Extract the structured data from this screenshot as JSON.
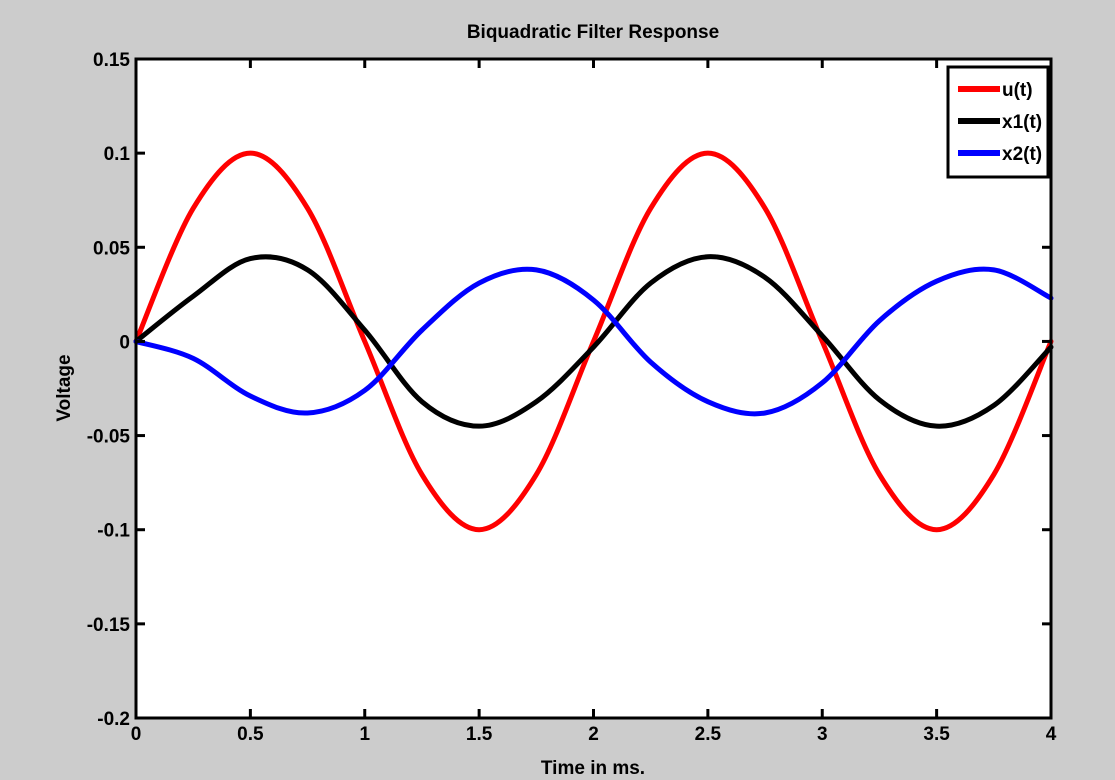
{
  "chart_data": {
    "type": "line",
    "title": "Biquadratic Filter Response",
    "xlabel": "Time in ms.",
    "ylabel": "Voltage",
    "xlim": [
      0,
      4
    ],
    "ylim": [
      -0.2,
      0.15
    ],
    "xticks": [
      0,
      0.5,
      1,
      1.5,
      2,
      2.5,
      3,
      3.5,
      4
    ],
    "xtick_labels": [
      "0",
      "0.5",
      "1",
      "1.5",
      "2",
      "2.5",
      "3",
      "3.5",
      "4"
    ],
    "yticks": [
      -0.2,
      -0.15,
      -0.1,
      -0.05,
      0,
      0.05,
      0.1,
      0.15
    ],
    "ytick_labels": [
      "-0.2",
      "-0.15",
      "-0.1",
      "-0.05",
      "0",
      "0.05",
      "0.1",
      "0.15"
    ],
    "grid": false,
    "legend_position": "top-right",
    "x": [
      0,
      0.25,
      0.5,
      0.75,
      1,
      1.25,
      1.5,
      1.75,
      2,
      2.25,
      2.5,
      2.75,
      3,
      3.25,
      3.5,
      3.75,
      4
    ],
    "series": [
      {
        "name": "u(t)",
        "color": "#ff0000",
        "values": [
          0,
          0.0707,
          0.1,
          0.0707,
          0,
          -0.0707,
          -0.1,
          -0.0707,
          0,
          0.0707,
          0.1,
          0.0707,
          0,
          -0.0707,
          -0.1,
          -0.0707,
          0
        ]
      },
      {
        "name": "x1(t)",
        "color": "#000000",
        "values": [
          0,
          0.024,
          0.044,
          0.038,
          0.006,
          -0.032,
          -0.045,
          -0.032,
          -0.003,
          0.031,
          0.045,
          0.034,
          0.003,
          -0.031,
          -0.045,
          -0.034,
          -0.003
        ]
      },
      {
        "name": "x2(t)",
        "color": "#0000ff",
        "values": [
          0,
          -0.009,
          -0.029,
          -0.038,
          -0.026,
          0.006,
          0.031,
          0.038,
          0.022,
          -0.011,
          -0.032,
          -0.038,
          -0.022,
          0.011,
          0.032,
          0.038,
          0.023
        ]
      }
    ]
  }
}
